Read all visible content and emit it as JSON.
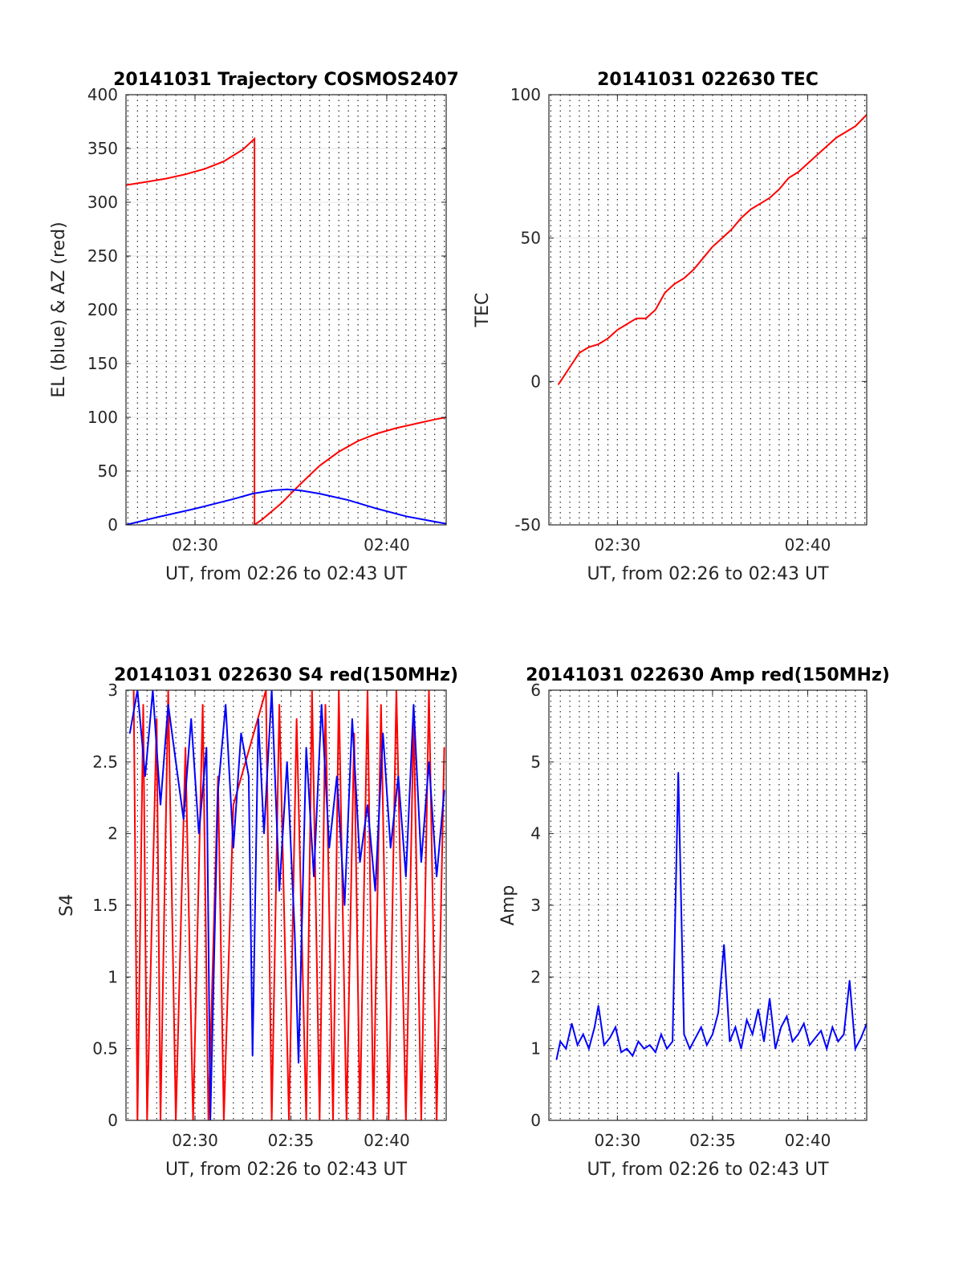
{
  "chart_data": [
    {
      "type": "line",
      "title": "20141031 Trajectory COSMOS2407",
      "xlabel": "UT, from 02:26 to 02:43 UT",
      "ylabel": "EL (blue) & AZ (red)",
      "xlim": [
        26.4,
        43.1
      ],
      "ylim": [
        0,
        400
      ],
      "xticks": [
        30,
        40
      ],
      "xtick_labels": [
        "02:30",
        "02:40"
      ],
      "yticks": [
        0,
        50,
        100,
        150,
        200,
        250,
        300,
        350,
        400
      ],
      "ytick_labels": [
        "0",
        "50",
        "100",
        "150",
        "200",
        "250",
        "300",
        "350",
        "400"
      ],
      "grid": "dotted vertical every 0.5 min, faint horizontal",
      "series": [
        {
          "color": "#ff0000",
          "x": [
            26.4,
            27.5,
            28.5,
            29.5,
            30.5,
            31.5,
            32.5,
            33.1,
            33.1,
            33.5,
            34.5,
            35.5,
            36.5,
            37.5,
            38.5,
            39.5,
            40.5,
            41.5,
            42.5,
            43.1
          ],
          "y": [
            316,
            319,
            322,
            326,
            331,
            338,
            349,
            359,
            0,
            5,
            20,
            38,
            55,
            68,
            78,
            85,
            90,
            94,
            98,
            100
          ]
        },
        {
          "color": "#0000ff",
          "x": [
            26.4,
            28,
            30,
            32,
            33,
            34,
            34.8,
            35.5,
            36.5,
            38,
            39.5,
            41,
            42.5,
            43.1
          ],
          "y": [
            0,
            7,
            15,
            24,
            29,
            32,
            33,
            32,
            29,
            23,
            15,
            8,
            3,
            1
          ]
        }
      ]
    },
    {
      "type": "line",
      "title": "20141031 022630 TEC",
      "xlabel": "UT, from 02:26 to 02:43 UT",
      "ylabel": "TEC",
      "xlim": [
        26.4,
        43.1
      ],
      "ylim": [
        -50,
        100
      ],
      "xticks": [
        30,
        40
      ],
      "xtick_labels": [
        "02:30",
        "02:40"
      ],
      "yticks": [
        -50,
        0,
        50,
        100
      ],
      "ytick_labels": [
        "-50",
        "0",
        "50",
        "100"
      ],
      "grid": "dotted vertical every 0.5 min, faint horizontal",
      "series": [
        {
          "color": "#ff0000",
          "x": [
            26.9,
            27.5,
            28.0,
            28.5,
            29.0,
            29.5,
            30.0,
            30.5,
            31.0,
            31.5,
            32.0,
            32.5,
            33.0,
            33.5,
            34.0,
            34.5,
            35.0,
            35.5,
            36.0,
            36.5,
            37.0,
            37.5,
            38.0,
            38.5,
            39.0,
            39.5,
            40.0,
            40.5,
            41.0,
            41.5,
            42.0,
            42.5,
            43.1
          ],
          "y": [
            -1,
            5,
            10,
            12,
            13,
            15,
            18,
            20,
            22,
            22,
            25,
            31,
            34,
            36,
            39,
            43,
            47,
            50,
            53,
            57,
            60,
            62,
            64,
            67,
            71,
            73,
            76,
            79,
            82,
            85,
            87,
            89,
            93
          ]
        }
      ]
    },
    {
      "type": "line",
      "title": "20141031 022630 S4 red(150MHz)",
      "xlabel": "UT, from 02:26 to 02:43 UT",
      "ylabel": "S4",
      "xlim": [
        26.4,
        43.1
      ],
      "ylim": [
        0,
        3
      ],
      "xticks": [
        30,
        35,
        40
      ],
      "xtick_labels": [
        "02:30",
        "02:35",
        "02:40"
      ],
      "yticks": [
        0,
        0.5,
        1,
        1.5,
        2,
        2.5,
        3
      ],
      "ytick_labels": [
        "0",
        "0.5",
        "1",
        "1.5",
        "2",
        "2.5",
        "3"
      ],
      "grid": "dotted vertical every 0.5 min, faint horizontal",
      "series": [
        {
          "color": "#ff0000",
          "x": [
            26.8,
            27.0,
            27.3,
            27.5,
            28.0,
            28.2,
            28.6,
            29.0,
            29.5,
            29.9,
            30.4,
            30.7,
            31.2,
            31.5,
            32.0,
            33.7,
            34.0,
            34.4,
            34.9,
            35.3,
            35.8,
            36.1,
            36.5,
            36.8,
            37.2,
            37.5,
            37.9,
            38.3,
            38.6,
            39.0,
            39.3,
            39.7,
            40.1,
            40.5,
            41.0,
            41.4,
            41.8,
            42.2,
            42.6,
            43.0
          ],
          "y": [
            3,
            0,
            2.9,
            0,
            2.8,
            0,
            3,
            0,
            2.6,
            0,
            2.9,
            0,
            2.4,
            0,
            2.2,
            3,
            0,
            2.9,
            0,
            2.8,
            0,
            3,
            0,
            2.9,
            0,
            3,
            0,
            2.7,
            0,
            3,
            0,
            2.9,
            0,
            3,
            0,
            2.8,
            0,
            3,
            0,
            2.6
          ]
        },
        {
          "color": "#0000ff",
          "x": [
            26.6,
            27.0,
            27.4,
            27.8,
            28.2,
            28.6,
            29.0,
            29.4,
            29.8,
            30.2,
            30.6,
            30.8,
            31.2,
            31.6,
            32.0,
            32.4,
            32.8,
            33.0,
            33.3,
            33.6,
            34.0,
            34.4,
            34.8,
            35.2,
            35.4,
            35.8,
            36.2,
            36.6,
            37.0,
            37.4,
            37.8,
            38.2,
            38.6,
            39.0,
            39.4,
            39.8,
            40.2,
            40.6,
            41.0,
            41.4,
            41.8,
            42.2,
            42.6,
            43.0
          ],
          "y": [
            2.7,
            3,
            2.4,
            3,
            2.2,
            2.9,
            2.5,
            2.1,
            2.8,
            2.0,
            2.6,
            0,
            2.3,
            2.9,
            1.9,
            2.7,
            2.4,
            0.45,
            2.8,
            2.0,
            3,
            1.6,
            2.5,
            1.3,
            0.4,
            2.6,
            1.7,
            2.9,
            1.9,
            2.4,
            1.5,
            2.8,
            1.8,
            2.2,
            1.6,
            2.7,
            1.9,
            2.4,
            1.7,
            2.9,
            1.8,
            2.5,
            1.7,
            2.3
          ]
        }
      ]
    },
    {
      "type": "line",
      "title": "20141031 022630 Amp red(150MHz)",
      "xlabel": "UT, from 02:26 to 02:43 UT",
      "ylabel": "Amp",
      "xlim": [
        26.4,
        43.1
      ],
      "ylim": [
        0,
        6
      ],
      "xticks": [
        30,
        35,
        40
      ],
      "xtick_labels": [
        "02:30",
        "02:35",
        "02:40"
      ],
      "yticks": [
        0,
        1,
        2,
        3,
        4,
        5,
        6
      ],
      "ytick_labels": [
        "0",
        "1",
        "2",
        "3",
        "4",
        "5",
        "6"
      ],
      "grid": "dotted vertical every 0.5 min, faint horizontal",
      "series": [
        {
          "color": "#0000ff",
          "x": [
            26.8,
            27.0,
            27.3,
            27.6,
            27.9,
            28.2,
            28.5,
            28.8,
            29.0,
            29.3,
            29.6,
            29.9,
            30.2,
            30.5,
            30.8,
            31.1,
            31.4,
            31.7,
            32.0,
            32.3,
            32.6,
            32.9,
            33.2,
            33.5,
            33.8,
            34.1,
            34.4,
            34.7,
            35.0,
            35.3,
            35.6,
            35.9,
            36.2,
            36.5,
            36.8,
            37.1,
            37.4,
            37.7,
            38.0,
            38.3,
            38.6,
            38.9,
            39.2,
            39.5,
            39.8,
            40.1,
            40.4,
            40.7,
            41.0,
            41.3,
            41.6,
            41.9,
            42.2,
            42.5,
            42.8,
            43.1
          ],
          "y": [
            0.85,
            1.1,
            1.0,
            1.35,
            1.05,
            1.2,
            1.0,
            1.3,
            1.6,
            1.05,
            1.15,
            1.3,
            0.95,
            1.0,
            0.9,
            1.1,
            1.0,
            1.05,
            0.95,
            1.2,
            1.0,
            1.1,
            4.85,
            1.2,
            1.0,
            1.15,
            1.3,
            1.05,
            1.2,
            1.5,
            2.45,
            1.1,
            1.3,
            1.0,
            1.4,
            1.2,
            1.55,
            1.1,
            1.7,
            1.0,
            1.3,
            1.45,
            1.1,
            1.2,
            1.35,
            1.05,
            1.15,
            1.25,
            1.0,
            1.3,
            1.1,
            1.2,
            1.95,
            1.0,
            1.15,
            1.35
          ]
        }
      ]
    }
  ]
}
